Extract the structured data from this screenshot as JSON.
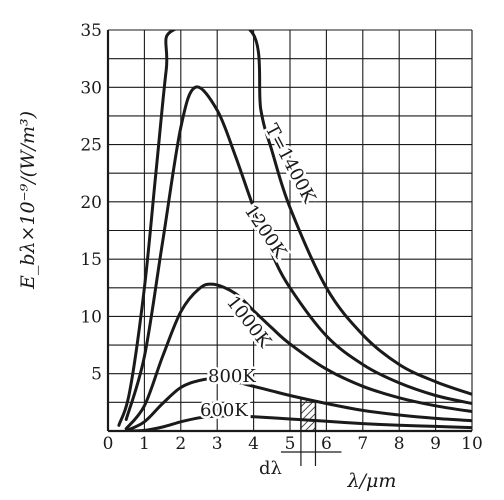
{
  "chart_data": {
    "type": "line",
    "xlabel": "λ/μm",
    "ylabel": "E_bλ×10⁻⁹/(W/m³)",
    "xlim": [
      0,
      10
    ],
    "ylim": [
      0,
      35
    ],
    "x_ticks": [
      0,
      1,
      2,
      3,
      4,
      5,
      6,
      7,
      8,
      9,
      10
    ],
    "y_ticks": [
      5,
      10,
      15,
      20,
      25,
      30,
      35
    ],
    "grid": true,
    "legend": "inline",
    "line_color": "#1a1a1a",
    "series": [
      {
        "name": "600K",
        "x": [
          0.5,
          1,
          1.5,
          2,
          2.5,
          3,
          3.5,
          4,
          5,
          6,
          7,
          8,
          9,
          10
        ],
        "y": [
          0.0,
          0.05,
          0.35,
          0.8,
          1.15,
          1.3,
          1.3,
          1.25,
          1.05,
          0.85,
          0.65,
          0.5,
          0.4,
          0.3
        ]
      },
      {
        "name": "800K",
        "x": [
          0.5,
          1,
          1.5,
          2,
          2.5,
          3,
          3.5,
          4,
          4.5,
          5,
          6,
          7,
          8,
          9,
          10
        ],
        "y": [
          0.02,
          0.8,
          2.4,
          3.8,
          4.4,
          4.6,
          4.3,
          3.9,
          3.5,
          3.1,
          2.4,
          1.8,
          1.4,
          1.1,
          0.9
        ]
      },
      {
        "name": "1000K",
        "x": [
          0.5,
          1,
          1.5,
          2,
          2.5,
          2.9,
          3.5,
          4,
          4.5,
          5,
          6,
          7,
          8,
          9,
          10
        ],
        "y": [
          0.2,
          2.2,
          6.5,
          10.4,
          12.4,
          12.8,
          12.0,
          10.5,
          9.0,
          7.6,
          5.4,
          3.9,
          2.9,
          2.2,
          1.7
        ]
      },
      {
        "name": "1200K",
        "x": [
          0.5,
          1,
          1.5,
          2,
          2.4,
          3,
          3.5,
          4,
          4.5,
          5,
          6,
          7,
          8,
          9,
          10
        ],
        "y": [
          1.0,
          6.5,
          16.5,
          26.5,
          30.0,
          28.0,
          24.0,
          19.5,
          15.5,
          12.5,
          8.3,
          5.8,
          4.2,
          3.1,
          2.4
        ]
      },
      {
        "name": "1400K",
        "x": [
          0.3,
          0.6,
          1,
          1.3,
          1.6,
          1.8,
          3.9,
          4.2,
          4.5,
          5,
          6,
          7,
          8,
          9,
          10
        ],
        "y": [
          0.5,
          3.5,
          12.5,
          22.0,
          31.5,
          35.0,
          35.0,
          28.0,
          24.5,
          19.5,
          12.5,
          8.4,
          5.8,
          4.3,
          3.2
        ]
      }
    ],
    "annotations": {
      "temperature_prefix": "T=1400K",
      "d_lambda": "dλ",
      "d_lambda_range": [
        5.3,
        5.7
      ]
    }
  }
}
